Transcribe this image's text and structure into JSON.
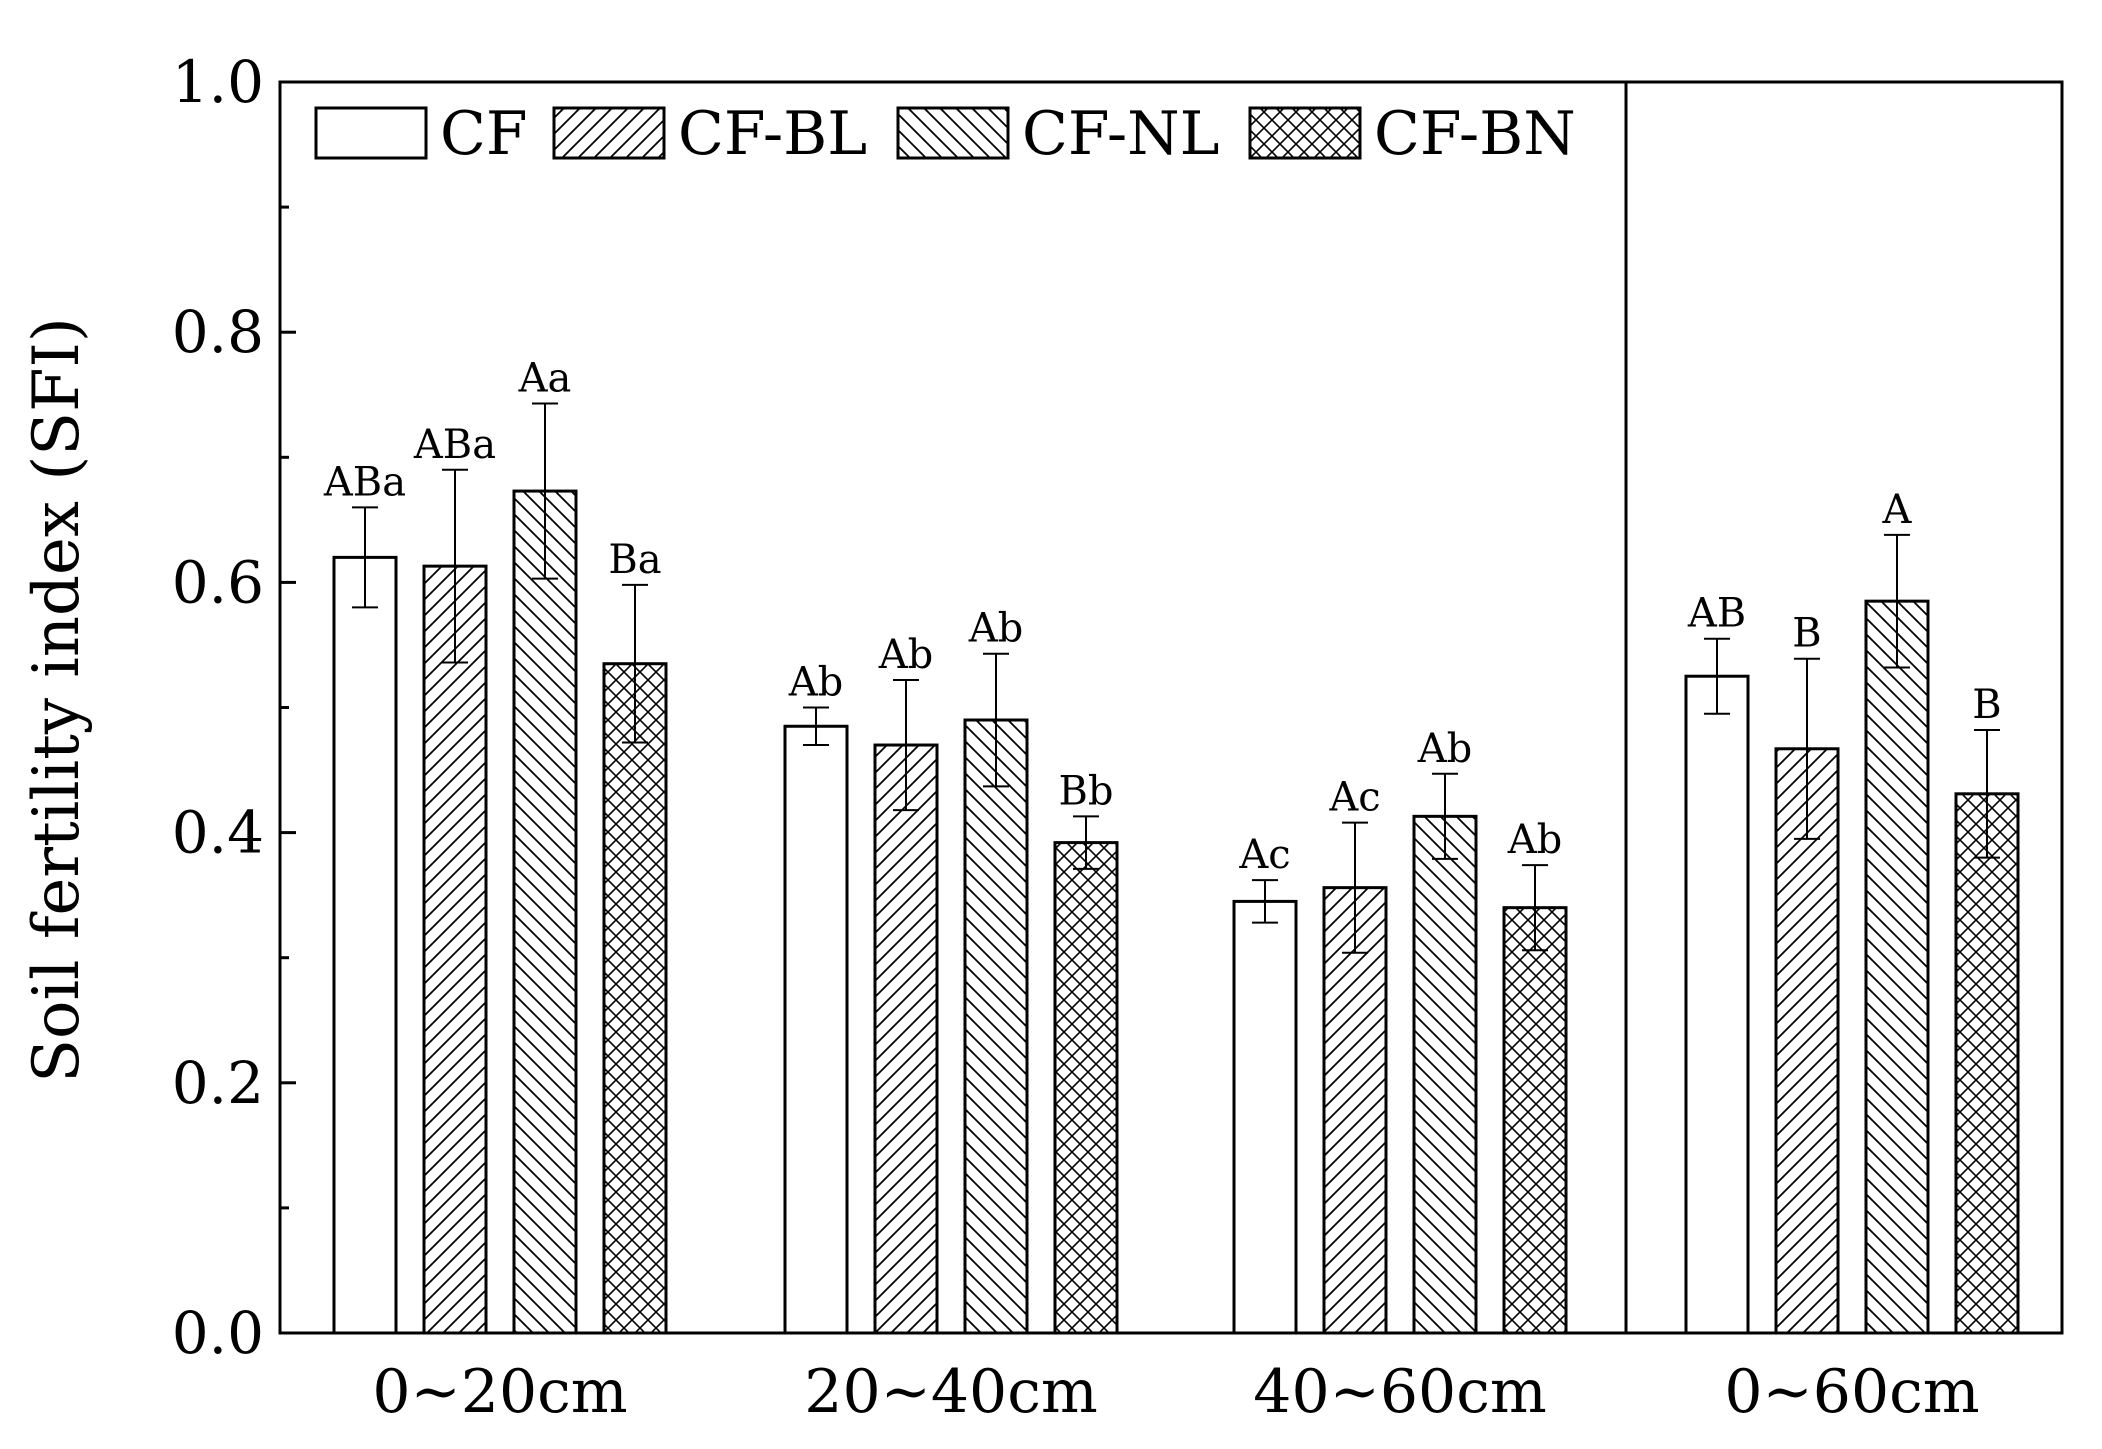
{
  "chart_data": {
    "type": "bar",
    "title": "",
    "ylabel": "Soil fertility index (SFI)",
    "xlabel": "",
    "ylim": [
      0,
      1.0
    ],
    "y_ticks": [
      "0.0",
      "0.2",
      "0.4",
      "0.6",
      "0.8",
      "1.0"
    ],
    "grid": false,
    "legend_position": "top-left",
    "categories": [
      "0~20cm",
      "20~40cm",
      "40~60cm",
      "0~60cm"
    ],
    "series": [
      {
        "name": "CF",
        "pattern": "none",
        "values": [
          0.62,
          0.485,
          0.345,
          0.525
        ],
        "errors": [
          0.04,
          0.015,
          0.017,
          0.03
        ],
        "letters": [
          "ABa",
          "Ab",
          "Ac",
          "AB"
        ]
      },
      {
        "name": "CF-BL",
        "pattern": "forward-diagonal",
        "values": [
          0.613,
          0.47,
          0.356,
          0.467
        ],
        "errors": [
          0.077,
          0.052,
          0.052,
          0.072
        ],
        "letters": [
          "ABa",
          "Ab",
          "Ac",
          "B"
        ]
      },
      {
        "name": "CF-NL",
        "pattern": "back-diagonal",
        "values": [
          0.673,
          0.49,
          0.413,
          0.585
        ],
        "errors": [
          0.07,
          0.053,
          0.034,
          0.053
        ],
        "letters": [
          "Aa",
          "Ab",
          "Ab",
          "A"
        ]
      },
      {
        "name": "CF-BN",
        "pattern": "crosshatch",
        "values": [
          0.535,
          0.392,
          0.34,
          0.431
        ],
        "errors": [
          0.063,
          0.021,
          0.034,
          0.051
        ],
        "letters": [
          "Ba",
          "Bb",
          "Ab",
          "B"
        ]
      }
    ],
    "annotations": [
      "vertical divider separates the 0~60cm summary panel from the depth layers"
    ]
  }
}
